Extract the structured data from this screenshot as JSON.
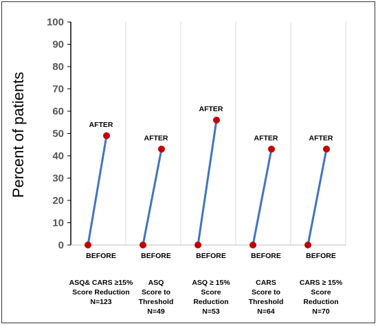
{
  "chart_data": {
    "type": "line",
    "title": "",
    "xlabel": "",
    "ylabel": "Percent of patients",
    "ylim": [
      0,
      100
    ],
    "yticks": [
      0,
      10,
      20,
      30,
      40,
      50,
      60,
      70,
      80,
      90,
      100
    ],
    "grid": "vertical",
    "categories": [
      [
        "ASQ& CARS ≥15%",
        "Score Reduction",
        "N=123"
      ],
      [
        "ASQ",
        "Score to",
        "Threshold",
        "N=49"
      ],
      [
        "ASQ ≥ 15%",
        "Score",
        "Reduction",
        "N=53"
      ],
      [
        "CARS",
        "Score to",
        "Threshold",
        "N=64"
      ],
      [
        "CARS ≥ 15%",
        "Score",
        "Reduction",
        "N=70"
      ]
    ],
    "before_label": "BEFORE",
    "after_label": "AFTER",
    "before_values": [
      0,
      0,
      0,
      0,
      0
    ],
    "after_values": [
      49,
      43,
      56,
      43,
      43
    ],
    "colors": {
      "line": "#4472C4",
      "marker": "#C00000"
    }
  }
}
